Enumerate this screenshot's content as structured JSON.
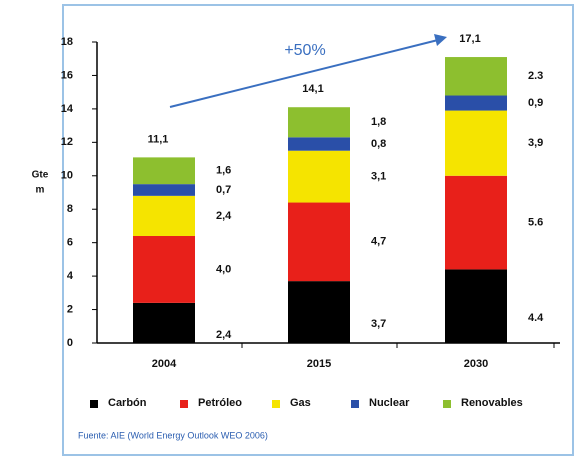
{
  "chart_data": {
    "type": "stacked_bar",
    "categories": [
      "2004",
      "2015",
      "2030"
    ],
    "series": [
      {
        "name": "Carbón",
        "color": "#000000",
        "values": [
          2.4,
          3.7,
          4.4
        ],
        "value_labels": [
          "2,4",
          "3,7",
          "4.4"
        ]
      },
      {
        "name": "Petróleo",
        "color": "#e8201a",
        "values": [
          4.0,
          4.7,
          5.6
        ],
        "value_labels": [
          "4,0",
          "4,7",
          "5.6"
        ]
      },
      {
        "name": "Gas",
        "color": "#f5e400",
        "values": [
          2.4,
          3.1,
          3.9
        ],
        "value_labels": [
          "2,4",
          "3,1",
          "3,9"
        ]
      },
      {
        "name": "Nuclear",
        "color": "#2a4fa8",
        "values": [
          0.7,
          0.8,
          0.9
        ],
        "value_labels": [
          "0,7",
          "0,8",
          "0,9"
        ]
      },
      {
        "name": "Renovables",
        "color": "#8dbf2f",
        "values": [
          1.6,
          1.8,
          2.3
        ],
        "value_labels": [
          "1,6",
          "1,8",
          "2.3"
        ]
      }
    ],
    "totals": [
      11.1,
      14.1,
      17.1
    ],
    "total_labels": [
      "11,1",
      "14,1",
      "17,1"
    ],
    "ylabel_lines": [
      "Gte",
      "m"
    ],
    "ylim": [
      0,
      18
    ],
    "yticks": [
      0,
      2,
      4,
      6,
      8,
      10,
      12,
      14,
      16,
      18
    ],
    "annotation": "+50%",
    "source": "Fuente: AIE (World Energy Outlook WEO 2006)"
  }
}
